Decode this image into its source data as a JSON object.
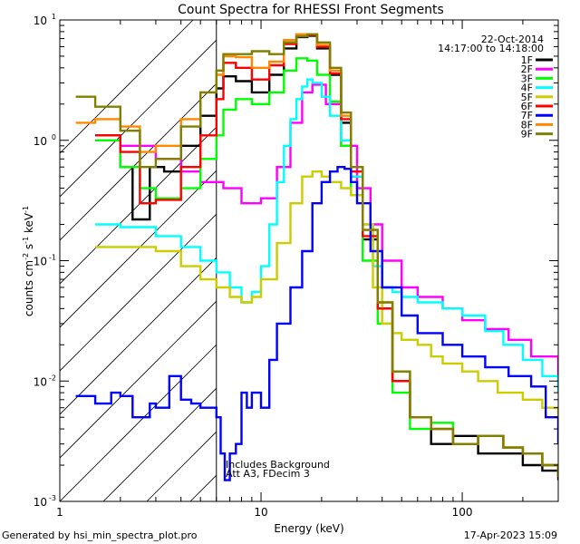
{
  "chart_data": {
    "type": "line",
    "title": "Count Spectra for RHESSI Front Segments",
    "xlabel": "Energy (keV)",
    "ylabel_main": "counts cm",
    "ylabel_exp1": "-2",
    "ylabel_mid": " s",
    "ylabel_exp2": "-1",
    "ylabel_unit": " keV",
    "ylabel_exp3": "-1",
    "xscale": "log",
    "yscale": "log",
    "xlim": [
      1,
      300
    ],
    "ylim": [
      0.001,
      10
    ],
    "x_ticks": [
      {
        "value": 1,
        "label": "1"
      },
      {
        "value": 10,
        "label": "10"
      },
      {
        "value": 100,
        "label": "100"
      }
    ],
    "y_ticks": [
      {
        "value": 0.001,
        "base": "10",
        "exp": "-3"
      },
      {
        "value": 0.01,
        "base": "10",
        "exp": "-2"
      },
      {
        "value": 0.1,
        "base": "10",
        "exp": "-1"
      },
      {
        "value": 1,
        "base": "10",
        "exp": "0"
      },
      {
        "value": 10,
        "base": "10",
        "exp": "1"
      }
    ],
    "date": "22-Oct-2014",
    "time_range": "14:17:00 to 14:18:00",
    "threshold_energy_keV": 6,
    "annotation_line1": "Includes Background",
    "annotation_line2": "Att A3, FDecim  3",
    "series": [
      {
        "name": "1F",
        "color": "#000000",
        "x": [
          1.5,
          2.0,
          2.3,
          2.8,
          3.3,
          4.0,
          5.0,
          6.0,
          6.5,
          7.5,
          9.0,
          11,
          13,
          15,
          17,
          19,
          22,
          25,
          28,
          32,
          38,
          45,
          55,
          70,
          90,
          120,
          160,
          200,
          250,
          300
        ],
        "y": [
          1.1,
          0.6,
          0.22,
          0.6,
          0.55,
          0.9,
          1.6,
          2.7,
          3.4,
          3.1,
          2.5,
          3.5,
          5.8,
          7.2,
          7.4,
          5.8,
          3.5,
          1.4,
          0.5,
          0.15,
          0.04,
          0.01,
          0.005,
          0.003,
          0.0035,
          0.0025,
          0.0025,
          0.002,
          0.0018,
          0.0015
        ]
      },
      {
        "name": "2F",
        "color": "#ff00ff",
        "x": [
          1.5,
          2.0,
          3.0,
          4.0,
          5.0,
          6.5,
          8.0,
          10,
          12,
          14,
          16,
          18,
          21,
          25,
          30,
          35,
          40,
          50,
          60,
          80,
          100,
          130,
          170,
          220,
          300
        ],
        "y": [
          1.0,
          0.9,
          0.7,
          0.55,
          0.45,
          0.4,
          0.3,
          0.33,
          0.6,
          1.4,
          2.5,
          2.9,
          2.0,
          0.9,
          0.4,
          0.2,
          0.1,
          0.06,
          0.05,
          0.04,
          0.032,
          0.027,
          0.022,
          0.016,
          0.009
        ]
      },
      {
        "name": "3F",
        "color": "#00ff00",
        "x": [
          1.5,
          2.0,
          2.5,
          3.0,
          4.0,
          5.0,
          6.0,
          6.5,
          7.5,
          9.0,
          11,
          13,
          15,
          17,
          19,
          22,
          25,
          28,
          32,
          38,
          45,
          55,
          70,
          90,
          120,
          160,
          200,
          250,
          300
        ],
        "y": [
          1.0,
          0.6,
          0.4,
          0.33,
          0.4,
          0.7,
          1.1,
          1.8,
          2.2,
          2.0,
          2.5,
          3.8,
          4.8,
          4.6,
          3.5,
          2.1,
          0.9,
          0.35,
          0.1,
          0.03,
          0.008,
          0.004,
          0.0045,
          0.003,
          0.0035,
          0.0028,
          0.0025,
          0.002,
          0.0016
        ]
      },
      {
        "name": "4F",
        "color": "#00ffff",
        "x": [
          1.5,
          2.0,
          3.0,
          4.0,
          5.0,
          6.0,
          7.0,
          8.0,
          9.0,
          10,
          11,
          12,
          13,
          14,
          15,
          16,
          17,
          18,
          20,
          22,
          25,
          28,
          32,
          36,
          40,
          45,
          50,
          60,
          80,
          100,
          130,
          160,
          200,
          250,
          300
        ],
        "y": [
          0.2,
          0.19,
          0.16,
          0.13,
          0.1,
          0.08,
          0.06,
          0.045,
          0.055,
          0.09,
          0.2,
          0.45,
          0.9,
          1.5,
          2.2,
          2.8,
          3.2,
          3.0,
          2.3,
          1.6,
          1.0,
          0.5,
          0.2,
          0.09,
          0.06,
          0.055,
          0.05,
          0.045,
          0.04,
          0.035,
          0.026,
          0.02,
          0.015,
          0.011,
          0.008
        ]
      },
      {
        "name": "5F",
        "color": "#cccc00",
        "x": [
          1.5,
          2.0,
          3.0,
          4.0,
          5.0,
          6.0,
          7.0,
          8.0,
          9.0,
          10,
          12,
          14,
          16,
          18,
          20,
          22,
          25,
          28,
          32,
          36,
          40,
          45,
          50,
          60,
          70,
          80,
          100,
          120,
          150,
          200,
          250,
          300
        ],
        "y": [
          0.13,
          0.13,
          0.12,
          0.09,
          0.07,
          0.06,
          0.05,
          0.045,
          0.05,
          0.07,
          0.14,
          0.3,
          0.5,
          0.55,
          0.5,
          0.45,
          0.4,
          0.35,
          0.2,
          0.06,
          0.03,
          0.025,
          0.022,
          0.02,
          0.016,
          0.014,
          0.012,
          0.01,
          0.008,
          0.007,
          0.006,
          0.005
        ]
      },
      {
        "name": "6F",
        "color": "#ff0000",
        "x": [
          1.5,
          2.0,
          2.5,
          3.0,
          4.0,
          5.0,
          6.0,
          6.5,
          7.5,
          9.0,
          11,
          13,
          15,
          17,
          19,
          22,
          25,
          28,
          32,
          38,
          45,
          55,
          70,
          90,
          120,
          160,
          200,
          250,
          300
        ],
        "y": [
          1.1,
          0.8,
          0.3,
          0.32,
          0.6,
          1.1,
          2.2,
          4.4,
          4.0,
          3.2,
          4.2,
          6.3,
          7.4,
          7.5,
          6.0,
          3.6,
          1.5,
          0.55,
          0.16,
          0.04,
          0.01,
          0.005,
          0.004,
          0.003,
          0.0035,
          0.0028,
          0.0025,
          0.002,
          0.0016
        ]
      },
      {
        "name": "7F",
        "color": "#0000ff",
        "x": [
          1.2,
          1.5,
          1.8,
          2.0,
          2.3,
          2.8,
          3.0,
          3.5,
          4.0,
          4.5,
          5.0,
          6.0,
          6.3,
          6.6,
          7.0,
          7.5,
          8.0,
          8.5,
          9.0,
          10,
          11,
          12,
          14,
          16,
          18,
          20,
          22,
          24,
          26,
          28,
          30,
          35,
          40,
          50,
          60,
          80,
          100,
          130,
          170,
          220,
          260,
          300
        ],
        "y": [
          0.0075,
          0.0065,
          0.008,
          0.0075,
          0.005,
          0.0065,
          0.006,
          0.011,
          0.007,
          0.0065,
          0.006,
          0.005,
          0.0025,
          0.0015,
          0.0025,
          0.003,
          0.008,
          0.006,
          0.008,
          0.006,
          0.015,
          0.03,
          0.06,
          0.12,
          0.3,
          0.45,
          0.55,
          0.6,
          0.58,
          0.45,
          0.3,
          0.12,
          0.06,
          0.035,
          0.025,
          0.02,
          0.016,
          0.013,
          0.011,
          0.009,
          0.005,
          0.003
        ]
      },
      {
        "name": "8F",
        "color": "#ff8800",
        "x": [
          1.2,
          1.5,
          2.0,
          2.5,
          3.0,
          4.0,
          5.0,
          6.0,
          6.5,
          7.5,
          9.0,
          11,
          13,
          15,
          17,
          19,
          22,
          25,
          28,
          32,
          38,
          45,
          55,
          70,
          90,
          120,
          160,
          200,
          250,
          300
        ],
        "y": [
          1.4,
          1.5,
          1.3,
          0.8,
          0.9,
          1.5,
          2.5,
          3.5,
          5.0,
          4.9,
          4.0,
          4.5,
          6.8,
          7.6,
          7.6,
          6.2,
          3.8,
          1.6,
          0.6,
          0.18,
          0.045,
          0.012,
          0.005,
          0.004,
          0.003,
          0.0035,
          0.0028,
          0.0025,
          0.002,
          0.0016
        ]
      },
      {
        "name": "9F",
        "color": "#808000",
        "x": [
          1.2,
          1.5,
          2.0,
          2.5,
          3.0,
          4.0,
          5.0,
          6.0,
          6.5,
          7.5,
          9.0,
          11,
          13,
          15,
          17,
          19,
          22,
          25,
          28,
          32,
          38,
          45,
          55,
          70,
          90,
          120,
          160,
          200,
          250,
          300
        ],
        "y": [
          2.3,
          1.9,
          1.2,
          0.6,
          0.7,
          1.3,
          2.5,
          3.8,
          5.2,
          5.2,
          5.5,
          5.2,
          6.5,
          7.3,
          7.6,
          6.5,
          4.0,
          1.7,
          0.6,
          0.18,
          0.045,
          0.012,
          0.005,
          0.004,
          0.003,
          0.0035,
          0.0028,
          0.0025,
          0.002,
          0.0016
        ]
      }
    ]
  },
  "footer": {
    "generated_by": "Generated by hsi_min_spectra_plot.pro",
    "timestamp": "17-Apr-2023 15:09"
  }
}
